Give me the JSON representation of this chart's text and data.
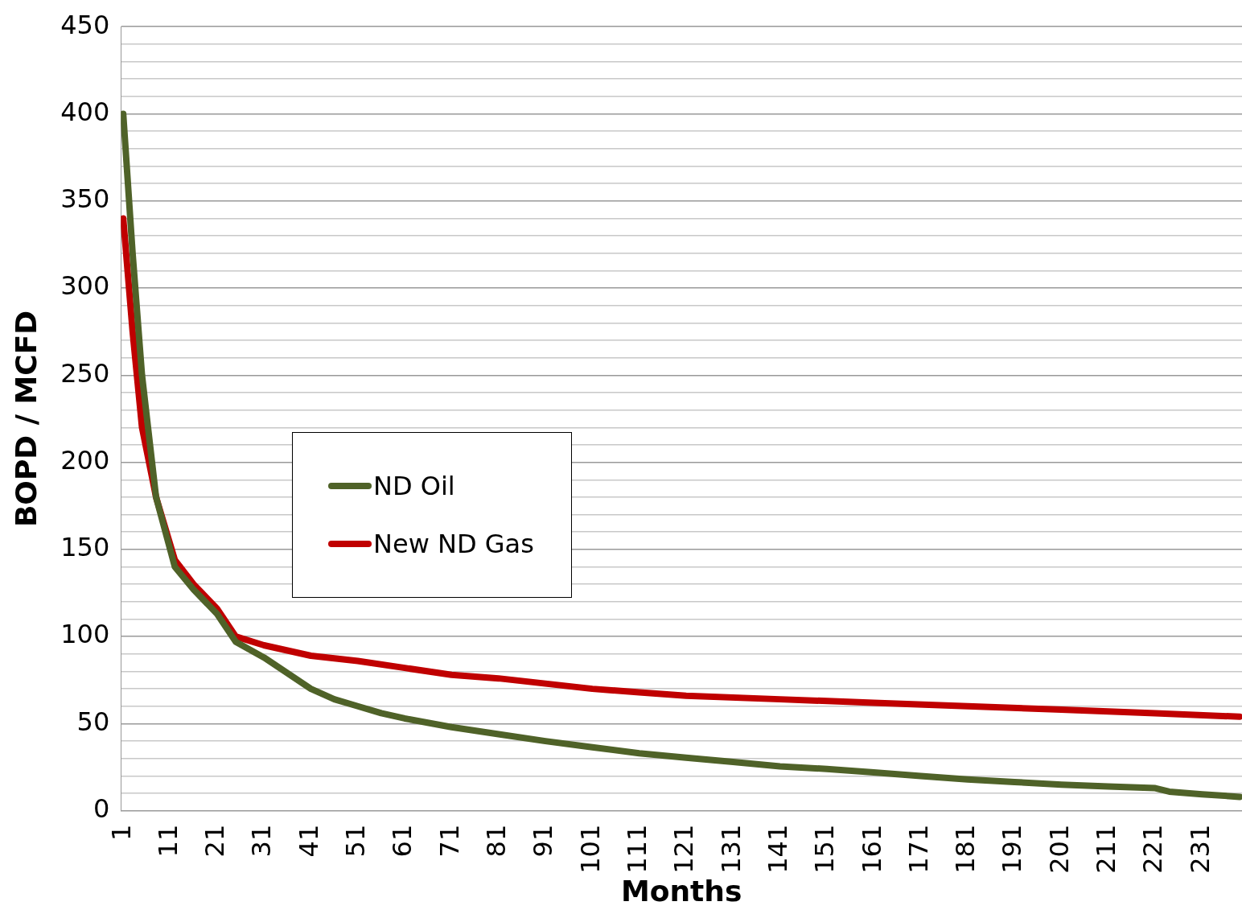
{
  "chart_data": {
    "type": "line",
    "xlabel": "Months",
    "ylabel": "BOPD / MCFD",
    "xlim": [
      0.5,
      239.5
    ],
    "xticks": [
      1,
      11,
      21,
      31,
      41,
      51,
      61,
      71,
      81,
      91,
      101,
      111,
      121,
      131,
      141,
      151,
      161,
      171,
      181,
      191,
      201,
      211,
      221,
      231
    ],
    "ylim": [
      0,
      450
    ],
    "yticks": [
      0,
      {
        "value": 10,
        "label": null
      },
      {
        "value": 20,
        "label": null
      },
      {
        "value": 30,
        "label": null
      },
      {
        "value": 40,
        "label": null
      },
      50,
      {
        "value": 60,
        "label": null
      },
      {
        "value": 70,
        "label": null
      },
      {
        "value": 80,
        "label": null
      },
      {
        "value": 90,
        "label": null
      },
      100,
      {
        "value": 110,
        "label": null
      },
      {
        "value": 120,
        "label": null
      },
      {
        "value": 130,
        "label": null
      },
      {
        "value": 140,
        "label": null
      },
      150,
      {
        "value": 160,
        "label": null
      },
      {
        "value": 170,
        "label": null
      },
      {
        "value": 180,
        "label": null
      },
      {
        "value": 190,
        "label": null
      },
      200,
      {
        "value": 210,
        "label": null
      },
      {
        "value": 220,
        "label": null
      },
      {
        "value": 230,
        "label": null
      },
      {
        "value": 240,
        "label": null
      },
      250,
      {
        "value": 260,
        "label": null
      },
      {
        "value": 270,
        "label": null
      },
      {
        "value": 280,
        "label": null
      },
      {
        "value": 290,
        "label": null
      },
      300,
      {
        "value": 310,
        "label": null
      },
      {
        "value": 320,
        "label": null
      },
      {
        "value": 330,
        "label": null
      },
      {
        "value": 340,
        "label": null
      },
      350,
      {
        "value": 360,
        "label": null
      },
      {
        "value": 370,
        "label": null
      },
      {
        "value": 380,
        "label": null
      },
      {
        "value": 390,
        "label": null
      },
      400,
      {
        "value": 410,
        "label": null
      },
      {
        "value": 420,
        "label": null
      },
      {
        "value": 430,
        "label": null
      },
      {
        "value": 440,
        "label": null
      },
      450
    ],
    "grid": "y",
    "legend": "left",
    "marker": "none",
    "line_style": "solid",
    "series": [
      {
        "name": "ND Oil",
        "color": "#4f6228",
        "x": [
          1,
          3,
          5,
          8,
          12,
          16,
          21,
          25,
          31,
          36,
          41,
          46,
          51,
          56,
          61,
          71,
          81,
          91,
          101,
          111,
          121,
          131,
          141,
          151,
          161,
          171,
          181,
          191,
          201,
          211,
          221,
          224,
          231,
          239
        ],
        "values": [
          400,
          320,
          250,
          180,
          140,
          127,
          113,
          97,
          88,
          79,
          70,
          64,
          60,
          56,
          53,
          48,
          44,
          40,
          36.5,
          33,
          30.5,
          28,
          25.5,
          24,
          22,
          20,
          18,
          16.5,
          15,
          14,
          13,
          11,
          9.5,
          8
        ]
      },
      {
        "name": "New ND Gas",
        "color": "#c00000",
        "x": [
          1,
          3,
          5,
          8,
          12,
          16,
          21,
          25,
          31,
          41,
          51,
          61,
          71,
          81,
          91,
          101,
          111,
          121,
          141,
          161,
          181,
          201,
          221,
          239
        ],
        "values": [
          340,
          275,
          220,
          180,
          144,
          130,
          116,
          100,
          95,
          89,
          86,
          82,
          78,
          76,
          73,
          70,
          68,
          66,
          64,
          62,
          60,
          58,
          56,
          54
        ]
      }
    ]
  }
}
